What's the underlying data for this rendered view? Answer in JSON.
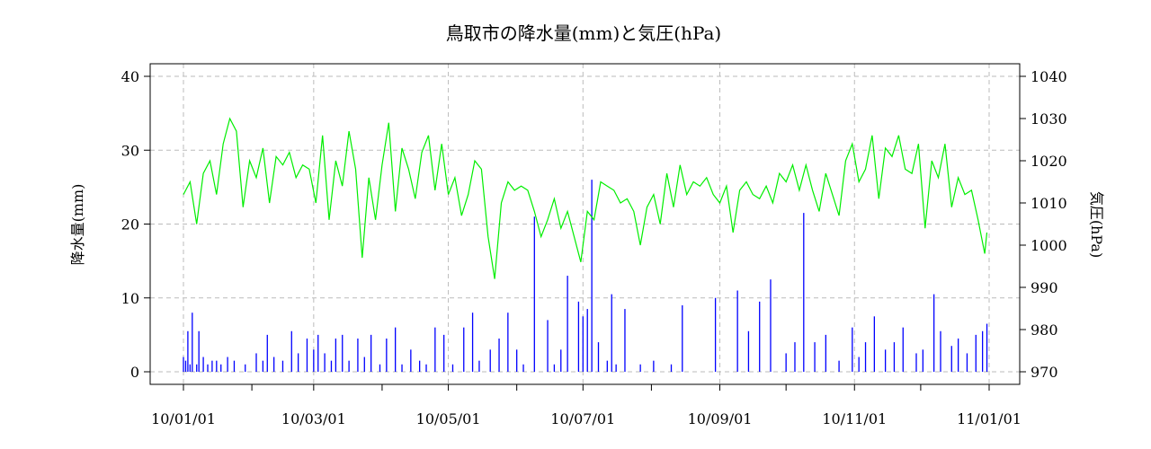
{
  "chart_data": {
    "type": "bar+line",
    "title": "鳥取市の降水量(mm)と気圧(hPa)",
    "ylabel_left": "降水量(mm)",
    "ylabel_right": "気圧(hPa)",
    "ylim_left": [
      0,
      40
    ],
    "ylim_right": [
      970,
      1040
    ],
    "yticks_left": [
      "0",
      "10",
      "20",
      "30",
      "40"
    ],
    "yticks_right": [
      "970",
      "980",
      "990",
      "1000",
      "1010",
      "1020",
      "1030",
      "1040"
    ],
    "x_labels": [
      "10/01/01",
      "10/03/01",
      "10/05/01",
      "10/07/01",
      "10/09/01",
      "10/11/01",
      "11/01/01"
    ],
    "x_minor_ticks": [
      "10/02/01",
      "10/04/01",
      "10/06/01",
      "10/08/01",
      "10/10/01",
      "10/12/01"
    ],
    "grid": true,
    "colors": {
      "precip": "#0000ff",
      "pressure": "#00ee00",
      "grid": "#bbbbbb"
    },
    "series": [
      {
        "kind": "bar",
        "axis": "left",
        "unit": "mm",
        "x": [
          "2010-01-01",
          "2010-01-02",
          "2010-01-03",
          "2010-01-04",
          "2010-01-05",
          "2010-01-07",
          "2010-01-08",
          "2010-01-10",
          "2010-01-12",
          "2010-01-14",
          "2010-01-16",
          "2010-01-18",
          "2010-01-21",
          "2010-01-24",
          "2010-01-29",
          "2010-02-03",
          "2010-02-06",
          "2010-02-08",
          "2010-02-11",
          "2010-02-15",
          "2010-02-19",
          "2010-02-22",
          "2010-02-26",
          "2010-03-01",
          "2010-03-03",
          "2010-03-06",
          "2010-03-09",
          "2010-03-11",
          "2010-03-14",
          "2010-03-17",
          "2010-03-21",
          "2010-03-24",
          "2010-03-27",
          "2010-03-31",
          "2010-04-03",
          "2010-04-07",
          "2010-04-10",
          "2010-04-14",
          "2010-04-18",
          "2010-04-21",
          "2010-04-25",
          "2010-04-29",
          "2010-05-03",
          "2010-05-08",
          "2010-05-12",
          "2010-05-15",
          "2010-05-20",
          "2010-05-24",
          "2010-05-28",
          "2010-06-01",
          "2010-06-04",
          "2010-06-09",
          "2010-06-15",
          "2010-06-18",
          "2010-06-21",
          "2010-06-24",
          "2010-06-29",
          "2010-07-01",
          "2010-07-03",
          "2010-07-05",
          "2010-07-08",
          "2010-07-12",
          "2010-07-14",
          "2010-07-16",
          "2010-07-20",
          "2010-07-27",
          "2010-08-02",
          "2010-08-10",
          "2010-08-15",
          "2010-08-30",
          "2010-09-09",
          "2010-09-14",
          "2010-09-19",
          "2010-09-24",
          "2010-10-01",
          "2010-10-05",
          "2010-10-09",
          "2010-10-14",
          "2010-10-19",
          "2010-10-25",
          "2010-10-31",
          "2010-11-03",
          "2010-11-06",
          "2010-11-10",
          "2010-11-15",
          "2010-11-19",
          "2010-11-23",
          "2010-11-29",
          "2010-12-02",
          "2010-12-07",
          "2010-12-10",
          "2010-12-15",
          "2010-12-18",
          "2010-12-22",
          "2010-12-26",
          "2010-12-29",
          "2010-12-31"
        ],
        "values": [
          2,
          1.5,
          5.5,
          1,
          8,
          1,
          5.5,
          2,
          1,
          1.5,
          1.5,
          1,
          2,
          1.5,
          1,
          2.5,
          1.5,
          5,
          2,
          1.5,
          5.5,
          2.5,
          4.5,
          3,
          5,
          2.5,
          1.5,
          4.5,
          5,
          1.5,
          4.5,
          2,
          5,
          1,
          4.5,
          6,
          1,
          3,
          1.5,
          1,
          6,
          5,
          1,
          6,
          8,
          1.5,
          3,
          4.5,
          8,
          3,
          1,
          21,
          7,
          1,
          3,
          13,
          9.5,
          7.5,
          8.5,
          26,
          4,
          1.5,
          10.5,
          1,
          8.5,
          1,
          1.5,
          1,
          9,
          10,
          11,
          5.5,
          9.5,
          12.5,
          2.5,
          4,
          21.5,
          4,
          5,
          1.5,
          6,
          2,
          4,
          7.5,
          3,
          4,
          6,
          2.5,
          3,
          10.5,
          5.5,
          3.5,
          4.5,
          2.5,
          5,
          5.5,
          6.5
        ]
      },
      {
        "kind": "line",
        "axis": "right",
        "unit": "hPa",
        "x": [
          "2010-01-01",
          "2010-01-04",
          "2010-01-07",
          "2010-01-10",
          "2010-01-13",
          "2010-01-16",
          "2010-01-19",
          "2010-01-22",
          "2010-01-25",
          "2010-01-28",
          "2010-01-31",
          "2010-02-03",
          "2010-02-06",
          "2010-02-09",
          "2010-02-12",
          "2010-02-15",
          "2010-02-18",
          "2010-02-21",
          "2010-02-24",
          "2010-02-27",
          "2010-03-02",
          "2010-03-05",
          "2010-03-08",
          "2010-03-11",
          "2010-03-14",
          "2010-03-17",
          "2010-03-20",
          "2010-03-23",
          "2010-03-26",
          "2010-03-29",
          "2010-04-01",
          "2010-04-04",
          "2010-04-07",
          "2010-04-10",
          "2010-04-13",
          "2010-04-16",
          "2010-04-19",
          "2010-04-22",
          "2010-04-25",
          "2010-04-28",
          "2010-05-01",
          "2010-05-04",
          "2010-05-07",
          "2010-05-10",
          "2010-05-13",
          "2010-05-16",
          "2010-05-19",
          "2010-05-22",
          "2010-05-25",
          "2010-05-28",
          "2010-05-31",
          "2010-06-03",
          "2010-06-06",
          "2010-06-09",
          "2010-06-12",
          "2010-06-15",
          "2010-06-18",
          "2010-06-21",
          "2010-06-24",
          "2010-06-27",
          "2010-06-30",
          "2010-07-03",
          "2010-07-06",
          "2010-07-09",
          "2010-07-12",
          "2010-07-15",
          "2010-07-18",
          "2010-07-21",
          "2010-07-24",
          "2010-07-27",
          "2010-07-30",
          "2010-08-02",
          "2010-08-05",
          "2010-08-08",
          "2010-08-11",
          "2010-08-14",
          "2010-08-17",
          "2010-08-20",
          "2010-08-23",
          "2010-08-26",
          "2010-08-29",
          "2010-09-01",
          "2010-09-04",
          "2010-09-07",
          "2010-09-10",
          "2010-09-13",
          "2010-09-16",
          "2010-09-19",
          "2010-09-22",
          "2010-09-25",
          "2010-09-28",
          "2010-10-01",
          "2010-10-04",
          "2010-10-07",
          "2010-10-10",
          "2010-10-13",
          "2010-10-16",
          "2010-10-19",
          "2010-10-22",
          "2010-10-25",
          "2010-10-28",
          "2010-10-31",
          "2010-11-03",
          "2010-11-06",
          "2010-11-09",
          "2010-11-12",
          "2010-11-15",
          "2010-11-18",
          "2010-11-21",
          "2010-11-24",
          "2010-11-27",
          "2010-11-30",
          "2010-12-03",
          "2010-12-06",
          "2010-12-09",
          "2010-12-12",
          "2010-12-15",
          "2010-12-18",
          "2010-12-21",
          "2010-12-24",
          "2010-12-27",
          "2010-12-30",
          "2010-12-31"
        ],
        "values": [
          1012,
          1015,
          1005,
          1017,
          1020,
          1012,
          1024,
          1030,
          1027,
          1009,
          1020,
          1016,
          1023,
          1010,
          1021,
          1019,
          1022,
          1016,
          1019,
          1018,
          1010,
          1026,
          1006,
          1020,
          1014,
          1027,
          1018,
          997,
          1016,
          1006,
          1019,
          1029,
          1008,
          1023,
          1018,
          1011,
          1022,
          1026,
          1013,
          1024,
          1012,
          1016,
          1007,
          1012,
          1020,
          1018,
          1002,
          992,
          1010,
          1015,
          1013,
          1014,
          1013,
          1008,
          1002,
          1006,
          1011,
          1004,
          1008,
          1002,
          996,
          1008,
          1006,
          1015,
          1014,
          1013,
          1010,
          1011,
          1008,
          1000,
          1009,
          1012,
          1005,
          1017,
          1009,
          1019,
          1012,
          1015,
          1014,
          1016,
          1012,
          1010,
          1014,
          1003,
          1013,
          1015,
          1012,
          1011,
          1014,
          1010,
          1017,
          1015,
          1019,
          1013,
          1019,
          1013,
          1008,
          1017,
          1012,
          1007,
          1020,
          1024,
          1015,
          1018,
          1026,
          1011,
          1023,
          1021,
          1026,
          1018,
          1017,
          1024,
          1004,
          1020,
          1016,
          1024,
          1009,
          1016,
          1012,
          1013,
          1006,
          998,
          1003
        ]
      }
    ]
  }
}
